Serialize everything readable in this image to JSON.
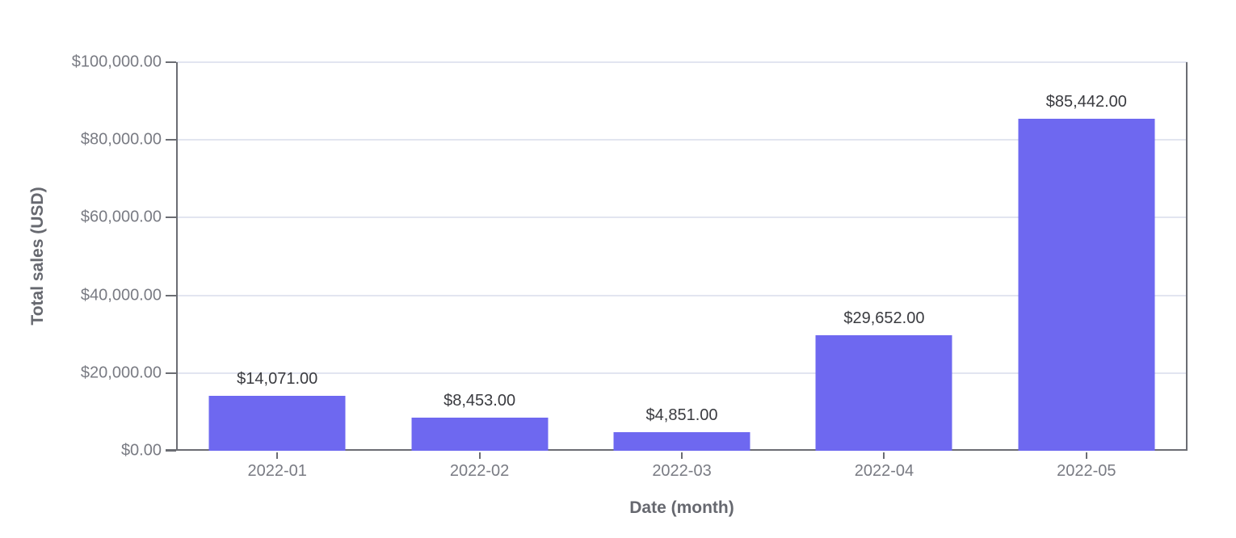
{
  "chart_data": {
    "type": "bar",
    "title": "",
    "xlabel": "Date (month)",
    "ylabel": "Total sales (USD)",
    "categories": [
      "2022-01",
      "2022-02",
      "2022-03",
      "2022-04",
      "2022-05"
    ],
    "values": [
      14071,
      8453,
      4851,
      29652,
      85442
    ],
    "value_labels": [
      "$14,071.00",
      "$8,453.00",
      "$4,851.00",
      "$29,652.00",
      "$85,442.00"
    ],
    "ylim": [
      0,
      100000
    ],
    "y_ticks": [
      {
        "value": 0,
        "label": "$0.00"
      },
      {
        "value": 20000,
        "label": "$20,000.00"
      },
      {
        "value": 40000,
        "label": "$40,000.00"
      },
      {
        "value": 60000,
        "label": "$60,000.00"
      },
      {
        "value": 80000,
        "label": "$80,000.00"
      },
      {
        "value": 100000,
        "label": "$100,000.00"
      }
    ],
    "grid": true,
    "legend": false,
    "colors": {
      "bar": "#6E68F0",
      "axis": "#6B6D73",
      "grid": "#E2E5F0",
      "tick_label": "#797B83",
      "axis_title": "#66686F",
      "data_label": "#3A3B40",
      "background": "#FFFFFF"
    }
  }
}
